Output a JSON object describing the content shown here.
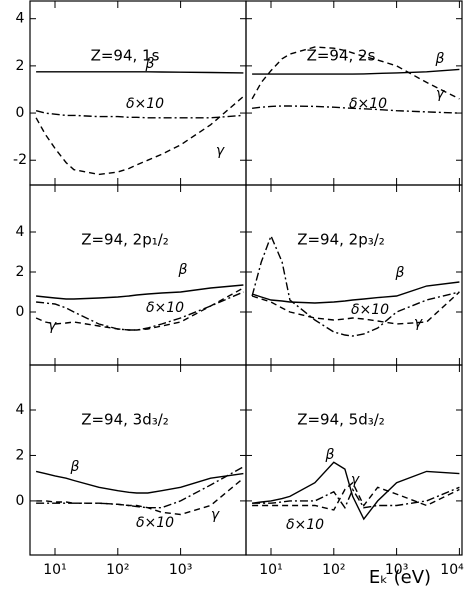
{
  "chart_data": [
    {
      "type": "line",
      "title": "Z=94, 1s",
      "log_x": true,
      "xlim": [
        4,
        11000
      ],
      "ylim": [
        -3.05,
        4.75
      ],
      "yticks": [
        -2,
        0,
        2,
        4
      ],
      "x": [
        5,
        7,
        10,
        15,
        20,
        50,
        100,
        150,
        200,
        300,
        500,
        1000,
        3000,
        10000
      ],
      "series": [
        {
          "name": "β",
          "color": "#000000",
          "style": "solid",
          "values": [
            1.75,
            1.75,
            1.75,
            1.75,
            1.75,
            1.75,
            1.75,
            1.75,
            1.75,
            1.75,
            1.74,
            1.73,
            1.72,
            1.7
          ]
        },
        {
          "name": "δ×10",
          "color": "#000000",
          "style": "dashdot",
          "values": [
            0.1,
            0.0,
            -0.05,
            -0.1,
            -0.1,
            -0.15,
            -0.15,
            -0.18,
            -0.18,
            -0.2,
            -0.2,
            -0.2,
            -0.2,
            -0.1
          ]
        },
        {
          "name": "γ",
          "color": "#000000",
          "style": "dashed",
          "values": [
            -0.2,
            -0.9,
            -1.5,
            -2.1,
            -2.4,
            -2.6,
            -2.5,
            -2.35,
            -2.2,
            -2.0,
            -1.75,
            -1.35,
            -0.5,
            0.7
          ]
        }
      ]
    },
    {
      "type": "line",
      "title": "Z=94, 2s",
      "log_x": true,
      "xlim": [
        4,
        11000
      ],
      "ylim": [
        -3.05,
        4.75
      ],
      "x": [
        5,
        7,
        10,
        15,
        20,
        50,
        100,
        150,
        200,
        300,
        500,
        1000,
        3000,
        10000
      ],
      "series": [
        {
          "name": "β",
          "color": "#000000",
          "style": "solid",
          "values": [
            1.65,
            1.65,
            1.65,
            1.65,
            1.65,
            1.65,
            1.65,
            1.65,
            1.65,
            1.66,
            1.68,
            1.7,
            1.75,
            1.85
          ]
        },
        {
          "name": "δ×10",
          "color": "#000000",
          "style": "dashdot",
          "values": [
            0.2,
            0.25,
            0.28,
            0.3,
            0.3,
            0.28,
            0.25,
            0.22,
            0.2,
            0.18,
            0.15,
            0.1,
            0.05,
            0.0
          ]
        },
        {
          "name": "γ",
          "color": "#000000",
          "style": "dashed",
          "values": [
            0.6,
            1.3,
            1.8,
            2.3,
            2.5,
            2.8,
            2.75,
            2.65,
            2.55,
            2.4,
            2.25,
            2.0,
            1.3,
            0.6
          ]
        }
      ]
    },
    {
      "type": "line",
      "title": "Z=94, 2p₁/₂",
      "log_x": true,
      "xlim": [
        4,
        11000
      ],
      "ylim": [
        -2.65,
        6.35
      ],
      "yticks": [
        0,
        2,
        4
      ],
      "x": [
        5,
        7,
        10,
        15,
        20,
        50,
        100,
        150,
        200,
        300,
        500,
        1000,
        3000,
        10000
      ],
      "series": [
        {
          "name": "β",
          "color": "#000000",
          "style": "solid",
          "values": [
            0.8,
            0.75,
            0.7,
            0.65,
            0.65,
            0.7,
            0.75,
            0.8,
            0.85,
            0.9,
            0.95,
            1.0,
            1.2,
            1.35
          ]
        },
        {
          "name": "δ×10",
          "color": "#000000",
          "style": "dashdot",
          "values": [
            0.5,
            0.45,
            0.4,
            0.2,
            0.0,
            -0.6,
            -0.85,
            -0.9,
            -0.9,
            -0.8,
            -0.6,
            -0.3,
            0.3,
            1.0
          ]
        },
        {
          "name": "γ",
          "color": "#000000",
          "style": "dashed",
          "values": [
            -0.3,
            -0.5,
            -0.6,
            -0.55,
            -0.5,
            -0.7,
            -0.85,
            -0.9,
            -0.9,
            -0.85,
            -0.7,
            -0.5,
            0.3,
            1.2
          ]
        }
      ]
    },
    {
      "type": "line",
      "title": "Z=94, 2p₃/₂",
      "log_x": true,
      "xlim": [
        4,
        11000
      ],
      "ylim": [
        -2.65,
        6.35
      ],
      "x": [
        5,
        7,
        10,
        15,
        20,
        50,
        100,
        150,
        200,
        300,
        500,
        1000,
        3000,
        10000
      ],
      "series": [
        {
          "name": "β",
          "color": "#000000",
          "style": "solid",
          "values": [
            0.9,
            0.75,
            0.6,
            0.55,
            0.5,
            0.45,
            0.5,
            0.55,
            0.6,
            0.65,
            0.72,
            0.8,
            1.3,
            1.5
          ]
        },
        {
          "name": "δ×10",
          "color": "#000000",
          "style": "dashdot",
          "values": [
            0.8,
            2.5,
            3.8,
            2.5,
            0.6,
            -0.4,
            -1.0,
            -1.15,
            -1.2,
            -1.1,
            -0.8,
            0.0,
            0.6,
            1.0
          ]
        },
        {
          "name": "γ",
          "color": "#000000",
          "style": "dashed",
          "values": [
            0.8,
            0.65,
            0.5,
            0.2,
            0.0,
            -0.3,
            -0.4,
            -0.35,
            -0.3,
            -0.35,
            -0.45,
            -0.6,
            -0.5,
            1.0
          ]
        }
      ]
    },
    {
      "type": "line",
      "title": "Z=94, 3d₃/₂",
      "log_x": true,
      "xlim": [
        4,
        11000
      ],
      "ylim": [
        -2.38,
        5.98
      ],
      "yticks": [
        0,
        2,
        4
      ],
      "xticks": [
        {
          "value": 10,
          "label": "10¹"
        },
        {
          "value": 100,
          "label": "10²"
        },
        {
          "value": 1000,
          "label": "10³"
        }
      ],
      "x": [
        5,
        7,
        10,
        15,
        20,
        50,
        100,
        150,
        200,
        300,
        500,
        1000,
        3000,
        10000
      ],
      "series": [
        {
          "name": "β",
          "color": "#000000",
          "style": "solid",
          "values": [
            1.3,
            1.2,
            1.1,
            1.0,
            0.9,
            0.6,
            0.45,
            0.38,
            0.35,
            0.35,
            0.45,
            0.6,
            1.0,
            1.2
          ]
        },
        {
          "name": "δ×10",
          "color": "#000000",
          "style": "dashdot",
          "values": [
            -0.1,
            -0.1,
            -0.1,
            -0.1,
            -0.1,
            -0.1,
            -0.15,
            -0.2,
            -0.25,
            -0.3,
            -0.3,
            0.0,
            0.7,
            1.5
          ]
        },
        {
          "name": "γ",
          "color": "#000000",
          "style": "dashed",
          "values": [
            0.0,
            0.0,
            -0.05,
            -0.05,
            -0.1,
            -0.1,
            -0.15,
            -0.2,
            -0.2,
            -0.3,
            -0.5,
            -0.6,
            -0.2,
            1.0
          ]
        }
      ]
    },
    {
      "type": "line",
      "title": "Z=94, 5d₃/₂",
      "log_x": true,
      "xlim": [
        4,
        11000
      ],
      "ylim": [
        -2.38,
        5.98
      ],
      "xlabel": "Eₖ (eV)",
      "xticks": [
        {
          "value": 10,
          "label": "10¹"
        },
        {
          "value": 100,
          "label": "10²"
        },
        {
          "value": 1000,
          "label": "10³"
        },
        {
          "value": 10000,
          "label": "10⁴"
        }
      ],
      "x": [
        5,
        7,
        10,
        15,
        20,
        50,
        100,
        150,
        200,
        300,
        500,
        1000,
        3000,
        10000
      ],
      "series": [
        {
          "name": "β",
          "color": "#000000",
          "style": "solid",
          "values": [
            -0.1,
            -0.05,
            0.0,
            0.1,
            0.2,
            0.8,
            1.7,
            1.4,
            0.2,
            -0.8,
            0.0,
            0.8,
            1.3,
            1.2
          ]
        },
        {
          "name": "δ×10",
          "color": "#000000",
          "style": "dashdot",
          "values": [
            -0.1,
            -0.1,
            -0.1,
            -0.05,
            0.0,
            0.0,
            0.4,
            -0.3,
            0.5,
            -0.3,
            -0.2,
            -0.2,
            0.0,
            0.6
          ]
        },
        {
          "name": "γ",
          "color": "#000000",
          "style": "dashed",
          "values": [
            -0.2,
            -0.2,
            -0.2,
            -0.2,
            -0.2,
            -0.2,
            -0.4,
            0.5,
            0.8,
            -0.2,
            0.6,
            0.3,
            -0.2,
            0.5
          ]
        }
      ]
    }
  ]
}
